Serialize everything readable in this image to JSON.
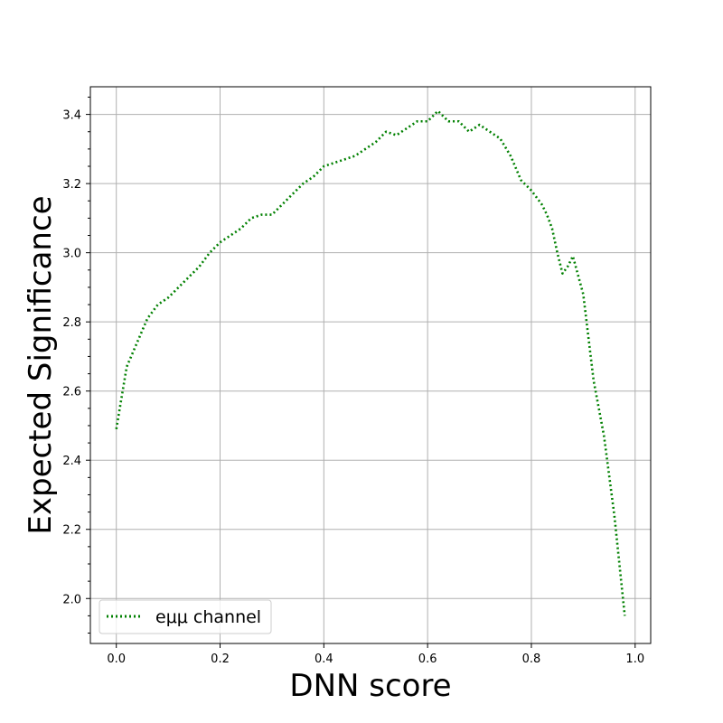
{
  "chart_data": {
    "type": "line",
    "xlabel": "DNN score",
    "ylabel": "Expected Significance",
    "xlim": [
      -0.05,
      1.03
    ],
    "ylim": [
      1.87,
      3.48
    ],
    "grid": true,
    "legend_position": "lower-left",
    "x_ticks": [
      0.0,
      0.2,
      0.4,
      0.6,
      0.8,
      1.0
    ],
    "x_tick_labels": [
      "0.0",
      "0.2",
      "0.4",
      "0.6",
      "0.8",
      "1.0"
    ],
    "y_ticks": [
      2.0,
      2.2,
      2.4,
      2.6,
      2.8,
      3.0,
      3.2,
      3.4
    ],
    "y_tick_labels": [
      "2.0",
      "2.2",
      "2.4",
      "2.6",
      "2.8",
      "3.0",
      "3.2",
      "3.4"
    ],
    "series": [
      {
        "name": "eμμ channel",
        "color": "#008000",
        "line_style": "dotted",
        "x": [
          0.0,
          0.02,
          0.04,
          0.06,
          0.08,
          0.1,
          0.12,
          0.14,
          0.16,
          0.18,
          0.2,
          0.22,
          0.24,
          0.26,
          0.28,
          0.3,
          0.32,
          0.34,
          0.36,
          0.38,
          0.4,
          0.42,
          0.44,
          0.46,
          0.48,
          0.5,
          0.52,
          0.54,
          0.56,
          0.58,
          0.6,
          0.62,
          0.64,
          0.66,
          0.68,
          0.7,
          0.72,
          0.74,
          0.76,
          0.78,
          0.8,
          0.82,
          0.83,
          0.84,
          0.85,
          0.86,
          0.87,
          0.88,
          0.9,
          0.92,
          0.94,
          0.96,
          0.98
        ],
        "y": [
          2.49,
          2.67,
          2.74,
          2.81,
          2.85,
          2.87,
          2.9,
          2.93,
          2.96,
          3.0,
          3.03,
          3.05,
          3.07,
          3.1,
          3.11,
          3.11,
          3.14,
          3.17,
          3.2,
          3.22,
          3.25,
          3.26,
          3.27,
          3.28,
          3.3,
          3.32,
          3.35,
          3.34,
          3.36,
          3.38,
          3.38,
          3.41,
          3.38,
          3.38,
          3.35,
          3.37,
          3.35,
          3.33,
          3.28,
          3.21,
          3.18,
          3.14,
          3.11,
          3.07,
          3.0,
          2.94,
          2.96,
          2.99,
          2.88,
          2.63,
          2.47,
          2.24,
          1.95
        ]
      }
    ]
  }
}
